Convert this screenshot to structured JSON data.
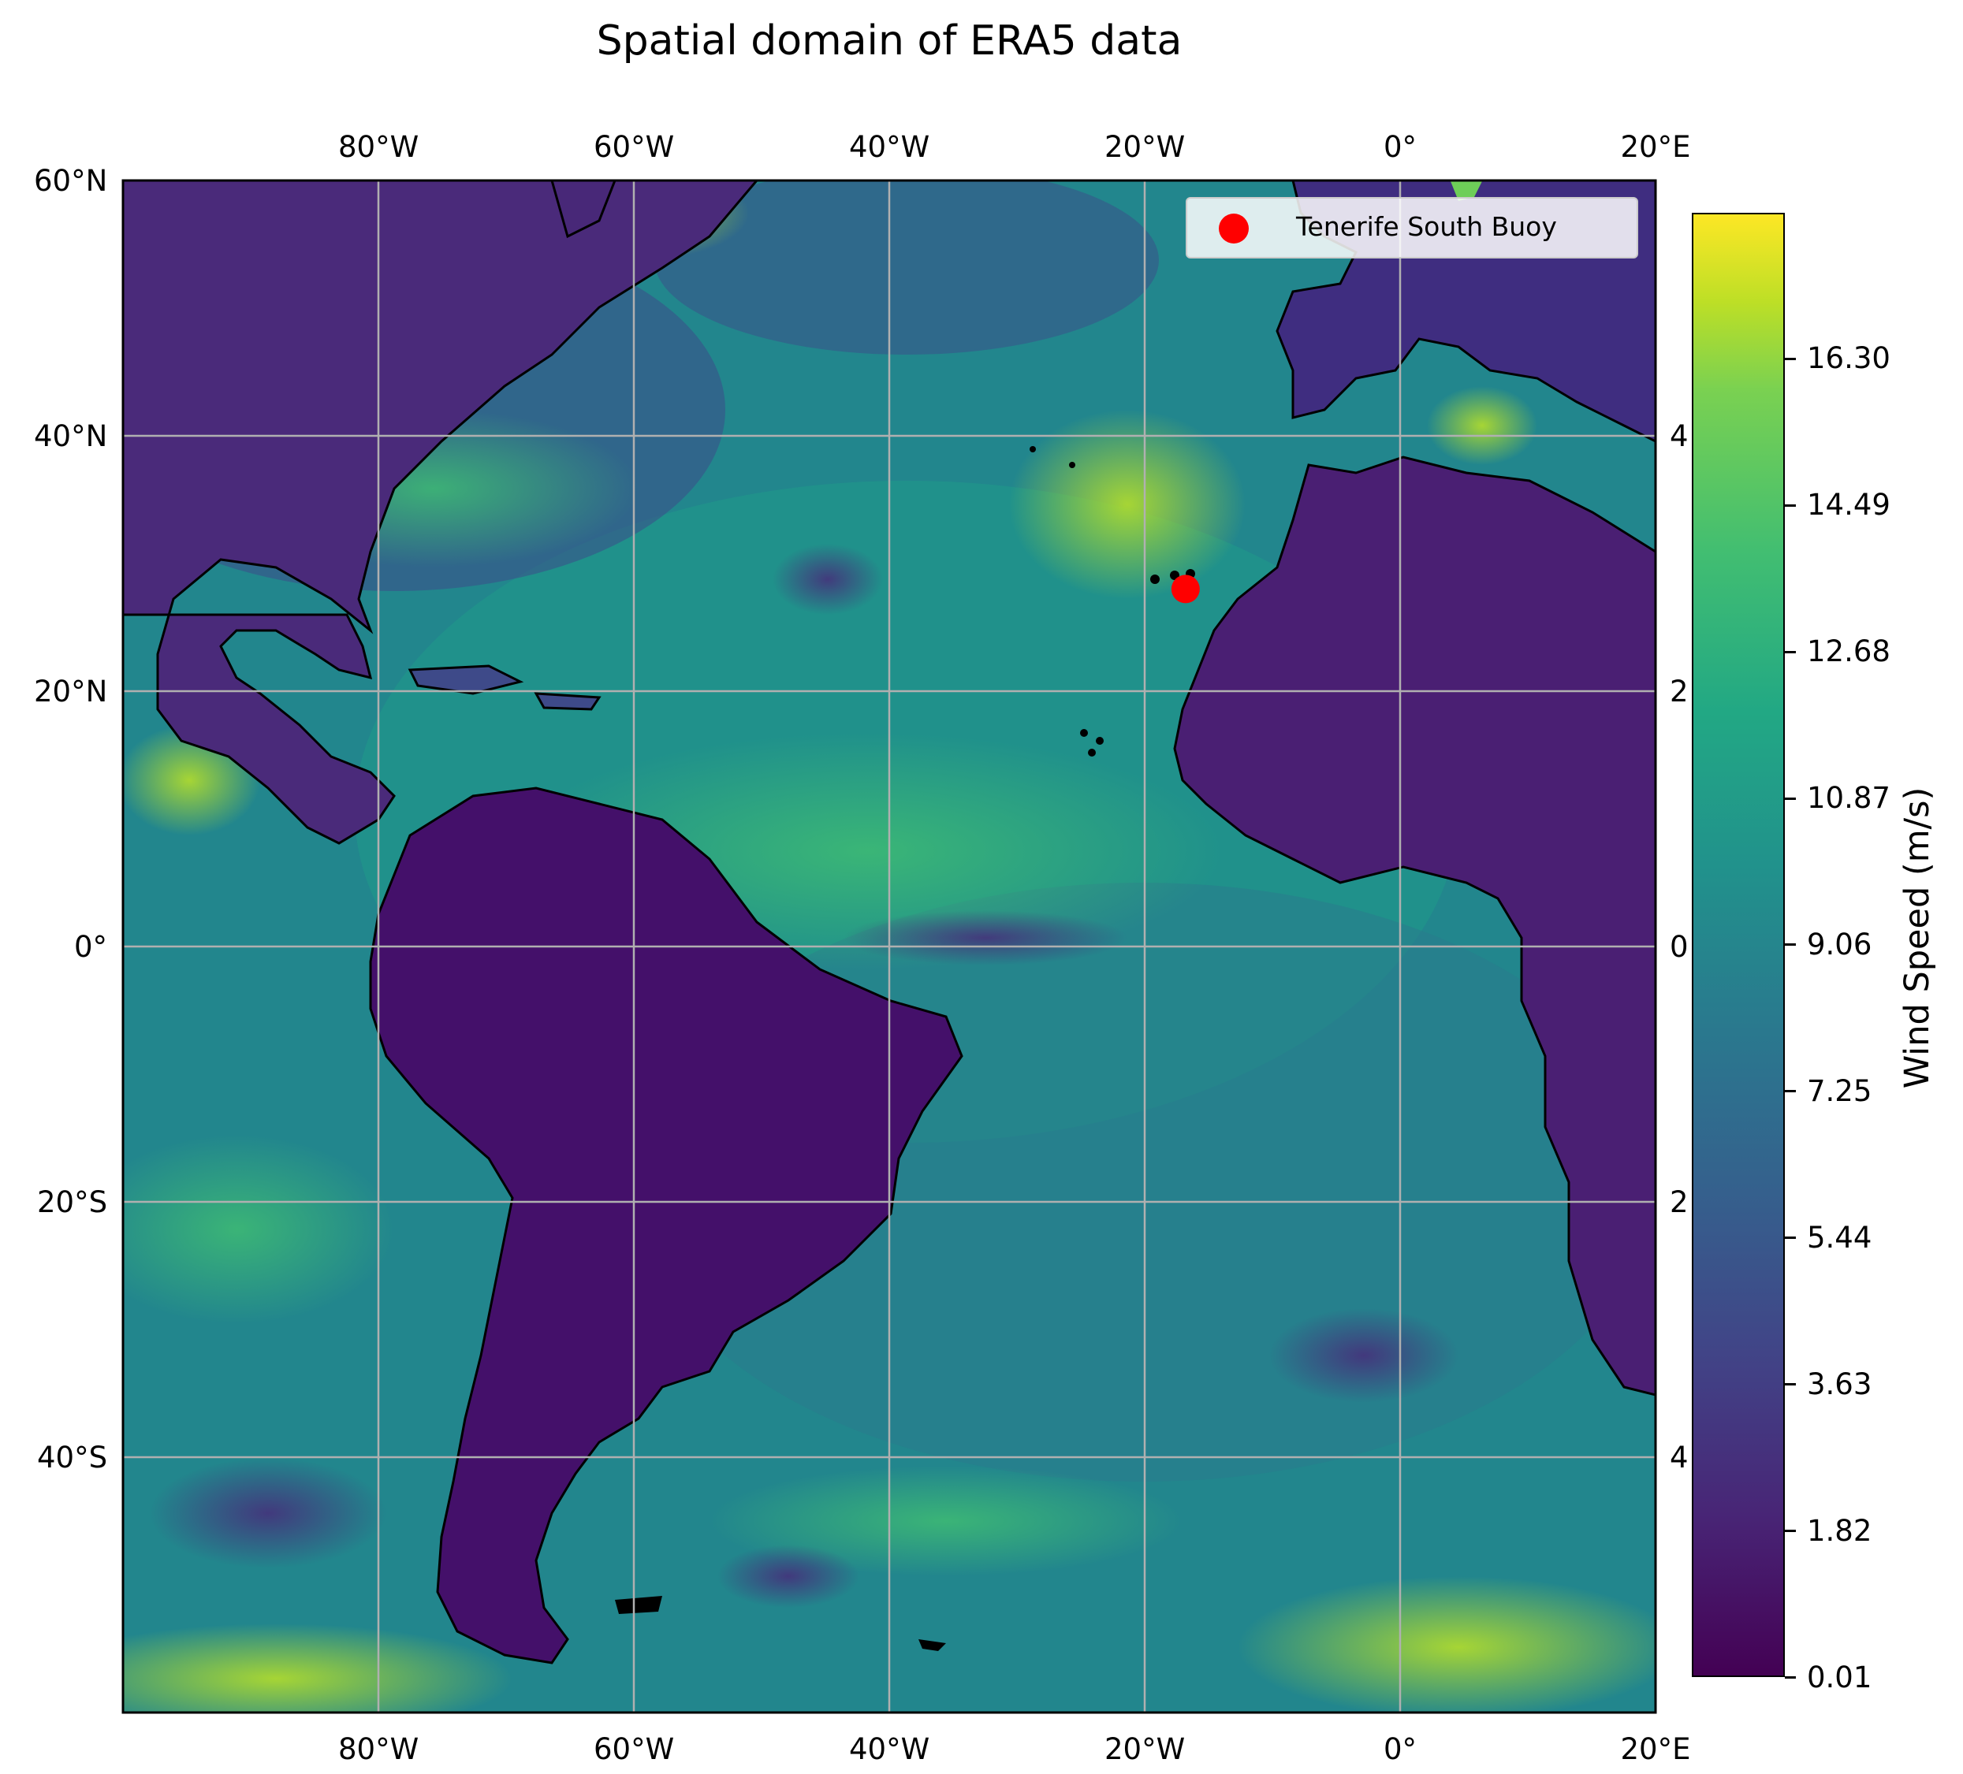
{
  "title": "Spatial domain of ERA5 data",
  "map": {
    "lon_range": [
      -100,
      20
    ],
    "lat_range": [
      -60,
      60
    ],
    "lon_ticks": [
      {
        "value": -80,
        "label": "80°W"
      },
      {
        "value": -60,
        "label": "60°W"
      },
      {
        "value": -40,
        "label": "40°W"
      },
      {
        "value": -20,
        "label": "20°W"
      },
      {
        "value": 0,
        "label": "0°"
      },
      {
        "value": 20,
        "label": "20°E"
      }
    ],
    "lat_ticks": [
      {
        "value": 60,
        "label": "60°N"
      },
      {
        "value": 40,
        "label": "40°N"
      },
      {
        "value": 20,
        "label": "20°N"
      },
      {
        "value": 0,
        "label": "0°"
      },
      {
        "value": -20,
        "label": "20°S"
      },
      {
        "value": -40,
        "label": "40°S"
      }
    ],
    "right_lat_labels": [
      {
        "value": 40,
        "label": "4"
      },
      {
        "value": 20,
        "label": "2"
      },
      {
        "value": 0,
        "label": "0"
      },
      {
        "value": -20,
        "label": "2"
      },
      {
        "value": -40,
        "label": "4"
      }
    ],
    "gridlines": true,
    "colormap": "viridis",
    "marker": {
      "name": "Tenerife South Buoy",
      "lon": -16.8,
      "lat": 28.0,
      "color": "#ff0000"
    }
  },
  "legend": {
    "label": "Tenerife South Buoy",
    "placement": "top-right"
  },
  "colorbar": {
    "label": "Wind Speed (m/s)",
    "min": 0.01,
    "max": 18.1,
    "ticks": [
      "0.01",
      "1.82",
      "3.63",
      "5.44",
      "7.25",
      "9.06",
      "10.87",
      "12.68",
      "14.49",
      "16.30"
    ]
  },
  "colors": {
    "marker": "#ff0000",
    "grid": "#b0b0b0",
    "coastline": "#000000"
  }
}
